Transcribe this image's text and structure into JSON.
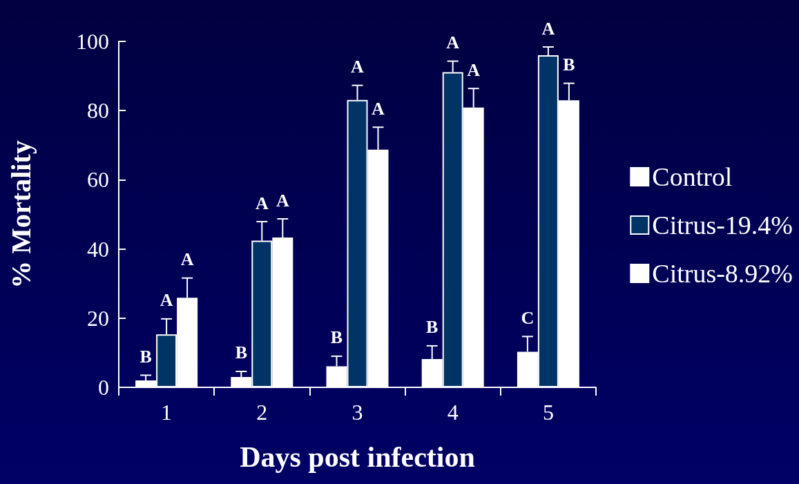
{
  "chart_data": {
    "type": "bar",
    "xlabel": "Days post infection",
    "ylabel": "% Mortality",
    "categories": [
      "1",
      "2",
      "3",
      "4",
      "5"
    ],
    "series": [
      {
        "name": "Control",
        "color": "#ffffff",
        "values": [
          2.0,
          3.0,
          6.1,
          8.2,
          10.3
        ],
        "errors": [
          [
            2.0,
            3.5
          ],
          [
            3.0,
            4.6
          ],
          [
            6.1,
            9.0
          ],
          [
            8.2,
            12.0
          ],
          [
            10.3,
            14.7
          ]
        ],
        "value_labels": [
          "B",
          "B",
          "B",
          "B",
          "C"
        ]
      },
      {
        "name": "Citrus-19.4%",
        "color": "#003366",
        "values": [
          15.3,
          42.4,
          83.1,
          91.1,
          96.0
        ],
        "errors": [
          [
            15.3,
            19.8
          ],
          [
            42.4,
            47.9
          ],
          [
            83.1,
            87.3
          ],
          [
            91.1,
            94.3
          ],
          [
            96.0,
            98.4
          ]
        ],
        "value_labels": [
          "A",
          "A",
          "A",
          "A",
          "A"
        ]
      },
      {
        "name": "Citrus-8.92%",
        "color": "#ffffff",
        "values": [
          25.9,
          43.3,
          68.7,
          80.9,
          83.0
        ],
        "errors": [
          [
            25.9,
            31.6
          ],
          [
            43.3,
            48.7
          ],
          [
            68.7,
            75.2
          ],
          [
            80.9,
            86.4
          ],
          [
            83.0,
            87.9
          ]
        ],
        "value_labels": [
          "A",
          "A",
          "A",
          "A",
          "B"
        ]
      }
    ],
    "ylim": [
      0,
      100
    ],
    "yticks": [
      0,
      20,
      40,
      60,
      80,
      100
    ],
    "grid": false,
    "legend": "right"
  }
}
